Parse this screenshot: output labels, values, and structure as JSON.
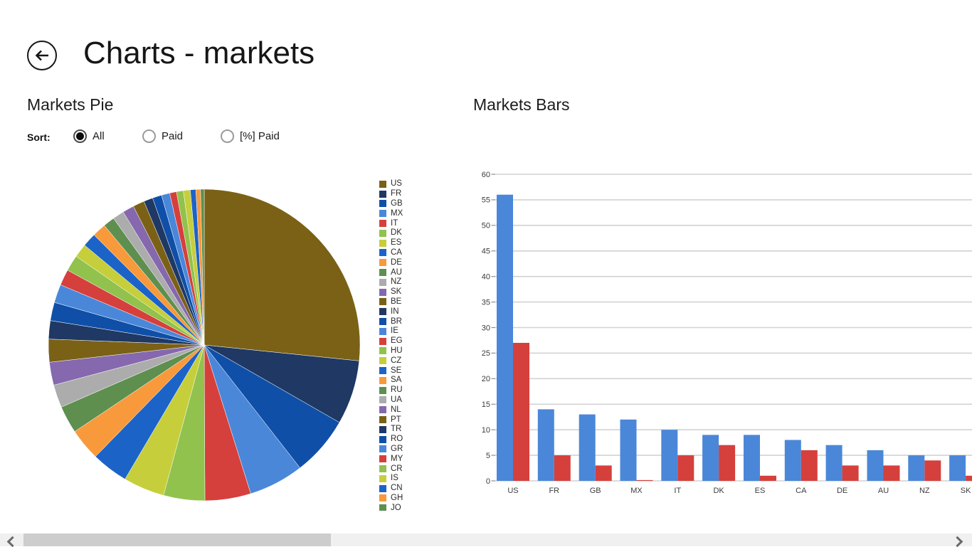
{
  "header": {
    "title": "Charts - markets"
  },
  "icons": {
    "back": "back-arrow-icon",
    "scroll_left": "chevron-left-icon",
    "scroll_right": "chevron-right-icon"
  },
  "pie_section": {
    "title": "Markets Pie",
    "sort_label": "Sort:",
    "sort_options": [
      {
        "label": "All",
        "selected": true
      },
      {
        "label": "Paid",
        "selected": false
      },
      {
        "label": "[%] Paid",
        "selected": false
      }
    ]
  },
  "bars_section": {
    "title": "Markets Bars"
  },
  "palette": [
    "#7A6116",
    "#1F3864",
    "#0F4FA8",
    "#4A87D9",
    "#D5403C",
    "#91C24D",
    "#C6CE3C",
    "#1C63C8",
    "#F8993B",
    "#5E8F4F",
    "#ACACAC",
    "#8568AE"
  ],
  "chart_data": [
    {
      "type": "pie",
      "title": "Markets Pie",
      "categories": [
        "US",
        "FR",
        "GB",
        "MX",
        "IT",
        "DK",
        "ES",
        "CA",
        "DE",
        "AU",
        "NZ",
        "SK",
        "BE",
        "IN",
        "BR",
        "IE",
        "EG",
        "HU",
        "CZ",
        "SE",
        "SA",
        "RU",
        "UA",
        "NL",
        "PT",
        "TR",
        "RO",
        "GR",
        "MY",
        "CR",
        "IS",
        "CN",
        "GH",
        "JO"
      ],
      "values": [
        56,
        14,
        13,
        12,
        10,
        9,
        9,
        8,
        7,
        6,
        5,
        5,
        5,
        4,
        4,
        4,
        3.5,
        3.5,
        3,
        3,
        3,
        2.5,
        2.5,
        2.5,
        2.5,
        2,
        2,
        1.8,
        1.5,
        1.5,
        1.5,
        1.2,
        1,
        0.8
      ],
      "start_angle_deg": 0,
      "direction": "clockwise",
      "legend_position": "right"
    },
    {
      "type": "bar",
      "title": "Markets Bars",
      "categories": [
        "US",
        "FR",
        "GB",
        "MX",
        "IT",
        "DK",
        "ES",
        "CA",
        "DE",
        "AU",
        "NZ",
        "SK"
      ],
      "series": [
        {
          "name": "all",
          "color": "#4A87D9",
          "values": [
            56,
            14,
            13,
            12,
            10,
            9,
            9,
            8,
            7,
            6,
            5,
            5
          ]
        },
        {
          "name": "paid",
          "color": "#D5403C",
          "values": [
            27,
            5,
            3,
            0.15,
            5,
            7,
            1,
            6,
            3,
            3,
            4,
            1
          ]
        }
      ],
      "ylim": [
        0,
        60
      ],
      "ytick_step": 5,
      "ytick_labels": [
        "0",
        "5",
        "10",
        "15",
        "20",
        "25",
        "30",
        "35",
        "40",
        "45",
        "50",
        "55",
        "60"
      ],
      "grid": true,
      "legend_position": "none"
    }
  ]
}
